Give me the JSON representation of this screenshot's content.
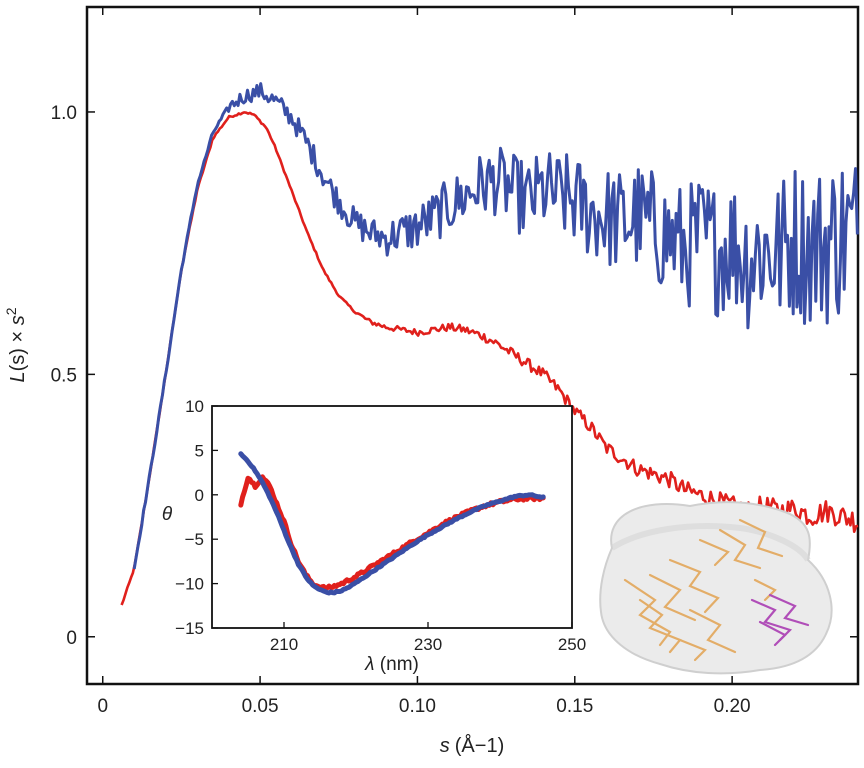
{
  "chart_data": [
    {
      "type": "line",
      "title": "",
      "xlabel": {
        "symbol": "s",
        "unit": "(Å−1)"
      },
      "ylabel": {
        "main": "L",
        "arg": "(s)",
        "times": " × ",
        "s": "s",
        "exp": "2"
      },
      "xlim": [
        -0.005,
        0.24
      ],
      "ylim": [
        -0.09,
        1.2
      ],
      "xticks": [
        0,
        0.05,
        0.1,
        0.15,
        0.2
      ],
      "xtick_labels": [
        "0",
        "0.05",
        "0.10",
        "0.15",
        "0.20"
      ],
      "yticks": [
        0,
        0.5,
        1.0
      ],
      "ytick_labels": [
        "0",
        "0.5",
        "1.0"
      ],
      "grid": false,
      "series": [
        {
          "color": "#e0201c",
          "x": [
            0.006,
            0.01,
            0.015,
            0.02,
            0.025,
            0.03,
            0.035,
            0.04,
            0.045,
            0.048,
            0.052,
            0.055,
            0.06,
            0.065,
            0.07,
            0.075,
            0.08,
            0.085,
            0.09,
            0.095,
            0.1,
            0.105,
            0.11,
            0.115,
            0.12,
            0.125,
            0.13,
            0.135,
            0.14,
            0.145,
            0.15,
            0.155,
            0.16,
            0.165,
            0.17,
            0.175,
            0.18,
            0.185,
            0.19,
            0.195,
            0.2,
            0.205,
            0.21,
            0.215,
            0.22,
            0.225,
            0.23,
            0.235,
            0.24
          ],
          "y": [
            0.06,
            0.13,
            0.31,
            0.5,
            0.7,
            0.85,
            0.95,
            0.99,
            1.0,
            0.995,
            0.97,
            0.93,
            0.85,
            0.77,
            0.7,
            0.65,
            0.62,
            0.6,
            0.59,
            0.585,
            0.58,
            0.585,
            0.59,
            0.585,
            0.575,
            0.56,
            0.54,
            0.52,
            0.5,
            0.47,
            0.43,
            0.4,
            0.36,
            0.34,
            0.32,
            0.31,
            0.3,
            0.28,
            0.27,
            0.26,
            0.25,
            0.24,
            0.25,
            0.24,
            0.245,
            0.23,
            0.24,
            0.23,
            0.22
          ]
        },
        {
          "color": "#3a4fa6",
          "x": [
            0.01,
            0.015,
            0.02,
            0.025,
            0.03,
            0.035,
            0.04,
            0.045,
            0.05,
            0.055,
            0.06,
            0.065,
            0.07,
            0.075,
            0.08,
            0.085,
            0.09,
            0.095,
            0.1,
            0.105,
            0.11,
            0.115,
            0.12,
            0.125,
            0.13,
            0.135,
            0.14,
            0.145,
            0.15,
            0.155,
            0.16,
            0.165,
            0.17,
            0.175,
            0.18,
            0.185,
            0.19,
            0.195,
            0.2,
            0.205,
            0.21,
            0.215,
            0.22,
            0.225,
            0.23,
            0.235,
            0.24
          ],
          "y": [
            0.13,
            0.31,
            0.5,
            0.7,
            0.86,
            0.96,
            1.01,
            1.03,
            1.04,
            1.02,
            0.99,
            0.94,
            0.88,
            0.83,
            0.79,
            0.77,
            0.76,
            0.77,
            0.78,
            0.8,
            0.82,
            0.84,
            0.86,
            0.87,
            0.85,
            0.83,
            0.85,
            0.84,
            0.83,
            0.81,
            0.8,
            0.79,
            0.8,
            0.78,
            0.76,
            0.74,
            0.76,
            0.74,
            0.75,
            0.72,
            0.74,
            0.73,
            0.76,
            0.74,
            0.75,
            0.77,
            0.76
          ]
        }
      ]
    },
    {
      "type": "line",
      "title": "",
      "xlabel": {
        "symbol": "λ",
        "unit": " (nm)"
      },
      "ylabel": {
        "symbol": "θ"
      },
      "xlim": [
        200,
        250
      ],
      "ylim": [
        -15,
        10
      ],
      "xticks": [
        210,
        230,
        250
      ],
      "xtick_labels": [
        "210",
        "230",
        "250"
      ],
      "yticks": [
        10,
        5,
        0,
        -5,
        -10,
        -15
      ],
      "ytick_labels": [
        "10",
        "5",
        "0",
        "−5",
        "−10",
        "−15"
      ],
      "grid": false,
      "series": [
        {
          "color": "#e0201c",
          "x": [
            204,
            205,
            206,
            207,
            208,
            209,
            210,
            211,
            212,
            213,
            214,
            215,
            216,
            217,
            218,
            219,
            220,
            222,
            224,
            226,
            228,
            230,
            232,
            234,
            236,
            238,
            240,
            242,
            244,
            246
          ],
          "y": [
            -1,
            2,
            1,
            2,
            1,
            -1,
            -3,
            -5.5,
            -7.5,
            -9,
            -10,
            -10.4,
            -10.5,
            -10.3,
            -10,
            -9.6,
            -9.2,
            -8.2,
            -7.2,
            -6.2,
            -5.2,
            -4.3,
            -3.3,
            -2.5,
            -1.8,
            -1.2,
            -0.8,
            -0.5,
            -0.4,
            -0.4
          ]
        },
        {
          "color": "#3a4fa6",
          "x": [
            204,
            205,
            206,
            207,
            208,
            209,
            210,
            211,
            212,
            213,
            214,
            215,
            216,
            217,
            218,
            219,
            220,
            222,
            224,
            226,
            228,
            230,
            232,
            234,
            236,
            238,
            240,
            242,
            244,
            246
          ],
          "y": [
            4.6,
            3.8,
            2.7,
            1.4,
            -0.2,
            -2,
            -4,
            -6,
            -7.8,
            -9.2,
            -10.2,
            -10.7,
            -11,
            -11,
            -10.8,
            -10.4,
            -9.9,
            -8.8,
            -7.7,
            -6.6,
            -5.5,
            -4.5,
            -3.6,
            -2.7,
            -1.9,
            -1.2,
            -0.7,
            -0.2,
            0,
            -0.3
          ]
        }
      ]
    }
  ],
  "structure_image": {
    "icon": "protein-envelope-icon",
    "envelope_color": "#e8e8e8",
    "ribbon_color": "#e3a75a",
    "highlight_color": "#b04eb8"
  }
}
